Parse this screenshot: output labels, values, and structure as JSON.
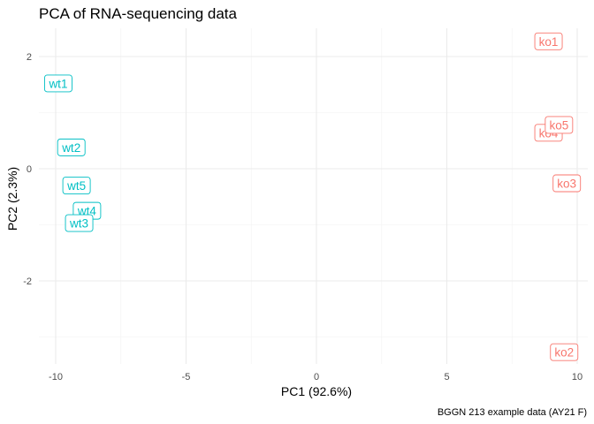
{
  "chart_data": {
    "type": "scatter",
    "title": "PCA of RNA-sequencing data",
    "xlabel": "PC1 (92.6%)",
    "ylabel": "PC2 (2.3%)",
    "caption": "BGGN 213 example data (AY21 F)",
    "xlim": [
      -10.5,
      10.5
    ],
    "ylim": [
      -3.4,
      2.5
    ],
    "x_ticks": [
      -10,
      -5,
      0,
      5,
      10
    ],
    "x_tick_labels": [
      "-10",
      "-5",
      "0",
      "5",
      "10"
    ],
    "y_ticks": [
      2,
      0,
      -2
    ],
    "y_tick_labels": [
      "2",
      "0",
      "-2"
    ],
    "grid": true,
    "legend": "none",
    "groups": [
      {
        "name": "ko",
        "color": "#f8766d"
      },
      {
        "name": "wt",
        "color": "#00bfc4"
      }
    ],
    "points": [
      {
        "label": "wt1",
        "group": "wt",
        "x": -9.9,
        "y": 1.52
      },
      {
        "label": "wt2",
        "group": "wt",
        "x": -9.4,
        "y": 0.38
      },
      {
        "label": "wt5",
        "group": "wt",
        "x": -9.2,
        "y": -0.3
      },
      {
        "label": "wt4",
        "group": "wt",
        "x": -8.8,
        "y": -0.75
      },
      {
        "label": "wt3",
        "group": "wt",
        "x": -9.1,
        "y": -0.97
      },
      {
        "label": "ko1",
        "group": "ko",
        "x": 8.9,
        "y": 2.27
      },
      {
        "label": "ko4",
        "group": "ko",
        "x": 8.9,
        "y": 0.64
      },
      {
        "label": "ko5",
        "group": "ko",
        "x": 9.3,
        "y": 0.78
      },
      {
        "label": "ko3",
        "group": "ko",
        "x": 9.6,
        "y": -0.26
      },
      {
        "label": "ko2",
        "group": "ko",
        "x": 9.5,
        "y": -3.27
      }
    ]
  }
}
